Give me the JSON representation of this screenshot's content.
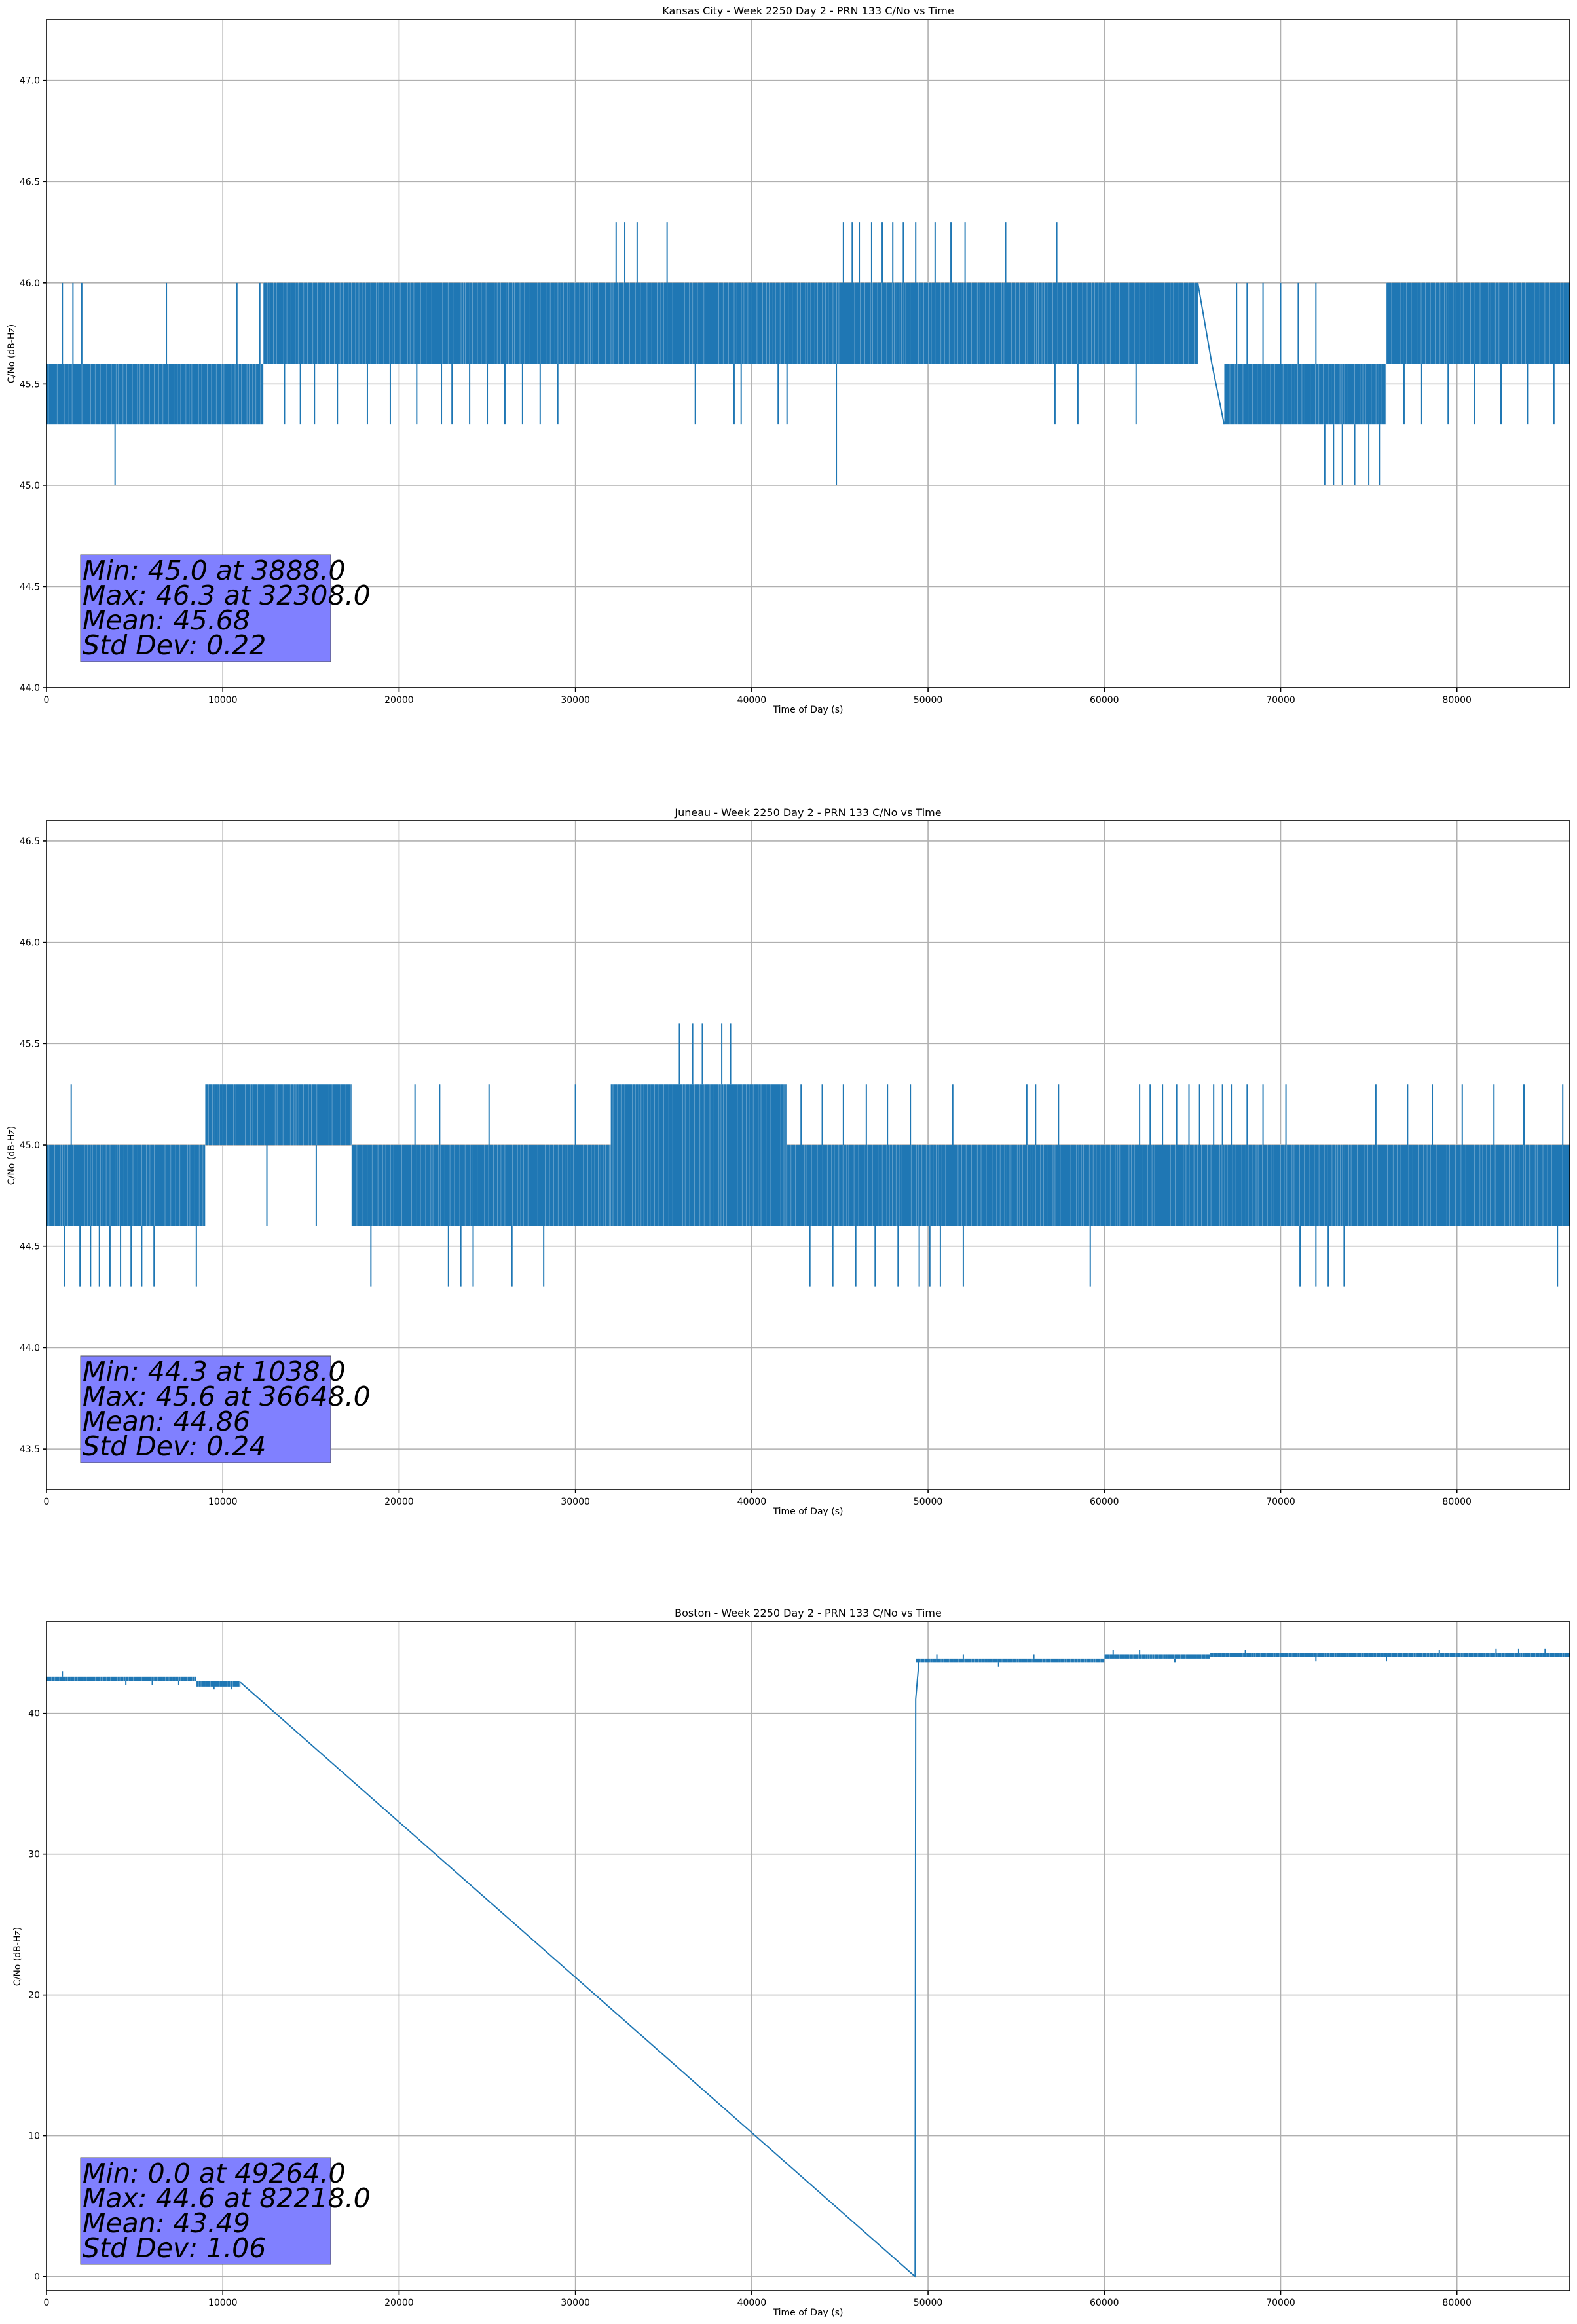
{
  "colors": {
    "series": "#1f77b4",
    "stats_box": "#8080ff",
    "grid": "#b0b0b0"
  },
  "chart_data": [
    {
      "type": "line",
      "title": "Kansas City - Week 2250 Day 2 - PRN 133 C/No vs Time",
      "xlabel": "Time of Day (s)",
      "ylabel": "C/No (dB-Hz)",
      "xlim": [
        0,
        86400
      ],
      "ylim": [
        44.0,
        47.3
      ],
      "xticks": [
        0,
        10000,
        20000,
        30000,
        40000,
        50000,
        60000,
        70000,
        80000
      ],
      "yticks": [
        44.0,
        44.5,
        45.0,
        45.5,
        46.0,
        46.5,
        47.0
      ],
      "ytick_format": 1,
      "grid": true,
      "stats_box": {
        "placement": "bottom-left",
        "lines": [
          "Min: 45.0 at 3888.0",
          "Max: 46.3 at 32308.0",
          "Mean: 45.68",
          "Std Dev: 0.22"
        ]
      },
      "bands": [
        {
          "from": 0,
          "to": 12300,
          "low": 45.3,
          "high": 45.6
        },
        {
          "from": 12300,
          "to": 65300,
          "low": 45.6,
          "high": 46.0
        },
        {
          "from": 66800,
          "to": 76000,
          "low": 45.3,
          "high": 45.6
        },
        {
          "from": 76000,
          "to": 86400,
          "low": 45.6,
          "high": 46.0
        }
      ],
      "segments": [
        {
          "x": [
            65300,
            66100,
            66800
          ],
          "y": [
            46.0,
            45.6,
            45.3
          ]
        }
      ],
      "spikes": [
        {
          "x": 900,
          "base": 45.6,
          "to": 46.0
        },
        {
          "x": 1500,
          "base": 45.6,
          "to": 46.0
        },
        {
          "x": 2000,
          "base": 45.6,
          "to": 46.0
        },
        {
          "x": 3888,
          "base": 45.3,
          "to": 45.0
        },
        {
          "x": 6800,
          "base": 45.6,
          "to": 46.0
        },
        {
          "x": 10800,
          "base": 45.6,
          "to": 46.0
        },
        {
          "x": 12100,
          "base": 45.6,
          "to": 46.0
        },
        {
          "x": 13500,
          "base": 45.6,
          "to": 45.3
        },
        {
          "x": 14400,
          "base": 45.6,
          "to": 45.3
        },
        {
          "x": 15200,
          "base": 45.6,
          "to": 45.3
        },
        {
          "x": 16500,
          "base": 45.6,
          "to": 45.3
        },
        {
          "x": 18200,
          "base": 45.6,
          "to": 45.3
        },
        {
          "x": 19500,
          "base": 45.6,
          "to": 45.3
        },
        {
          "x": 21000,
          "base": 45.6,
          "to": 45.3
        },
        {
          "x": 22400,
          "base": 45.6,
          "to": 45.3
        },
        {
          "x": 23000,
          "base": 45.6,
          "to": 45.3
        },
        {
          "x": 24000,
          "base": 45.6,
          "to": 45.3
        },
        {
          "x": 25000,
          "base": 45.6,
          "to": 45.3
        },
        {
          "x": 26000,
          "base": 45.6,
          "to": 45.3
        },
        {
          "x": 27000,
          "base": 45.6,
          "to": 45.3
        },
        {
          "x": 28000,
          "base": 45.6,
          "to": 45.3
        },
        {
          "x": 29000,
          "base": 45.6,
          "to": 45.3
        },
        {
          "x": 32308,
          "base": 46.0,
          "to": 46.3
        },
        {
          "x": 32800,
          "base": 46.0,
          "to": 46.3
        },
        {
          "x": 33500,
          "base": 46.0,
          "to": 46.3
        },
        {
          "x": 35200,
          "base": 46.0,
          "to": 46.3
        },
        {
          "x": 36800,
          "base": 45.6,
          "to": 45.3
        },
        {
          "x": 39000,
          "base": 45.6,
          "to": 45.3
        },
        {
          "x": 39400,
          "base": 45.6,
          "to": 45.3
        },
        {
          "x": 41500,
          "base": 45.6,
          "to": 45.3
        },
        {
          "x": 42000,
          "base": 45.6,
          "to": 45.3
        },
        {
          "x": 44800,
          "base": 45.6,
          "to": 45.0
        },
        {
          "x": 45200,
          "base": 46.0,
          "to": 46.3
        },
        {
          "x": 45700,
          "base": 46.0,
          "to": 46.3
        },
        {
          "x": 46100,
          "base": 46.0,
          "to": 46.3
        },
        {
          "x": 46800,
          "base": 46.0,
          "to": 46.3
        },
        {
          "x": 47400,
          "base": 46.0,
          "to": 46.3
        },
        {
          "x": 48000,
          "base": 46.0,
          "to": 46.3
        },
        {
          "x": 48600,
          "base": 46.0,
          "to": 46.3
        },
        {
          "x": 49300,
          "base": 46.0,
          "to": 46.3
        },
        {
          "x": 50400,
          "base": 46.0,
          "to": 46.3
        },
        {
          "x": 51300,
          "base": 46.0,
          "to": 46.3
        },
        {
          "x": 52100,
          "base": 46.0,
          "to": 46.3
        },
        {
          "x": 54400,
          "base": 46.0,
          "to": 46.3
        },
        {
          "x": 57300,
          "base": 46.0,
          "to": 46.3
        },
        {
          "x": 57200,
          "base": 45.6,
          "to": 45.3
        },
        {
          "x": 58500,
          "base": 45.6,
          "to": 45.3
        },
        {
          "x": 61800,
          "base": 45.6,
          "to": 45.3
        },
        {
          "x": 67500,
          "base": 45.6,
          "to": 46.0
        },
        {
          "x": 68100,
          "base": 45.6,
          "to": 46.0
        },
        {
          "x": 69000,
          "base": 45.6,
          "to": 46.0
        },
        {
          "x": 70000,
          "base": 45.6,
          "to": 46.0
        },
        {
          "x": 71000,
          "base": 45.6,
          "to": 46.0
        },
        {
          "x": 72000,
          "base": 45.6,
          "to": 46.0
        },
        {
          "x": 72500,
          "base": 45.3,
          "to": 45.0
        },
        {
          "x": 73000,
          "base": 45.3,
          "to": 45.0
        },
        {
          "x": 73500,
          "base": 45.3,
          "to": 45.0
        },
        {
          "x": 74200,
          "base": 45.3,
          "to": 45.0
        },
        {
          "x": 75000,
          "base": 45.3,
          "to": 45.0
        },
        {
          "x": 75600,
          "base": 45.3,
          "to": 45.0
        },
        {
          "x": 77000,
          "base": 45.6,
          "to": 45.3
        },
        {
          "x": 78000,
          "base": 45.6,
          "to": 45.3
        },
        {
          "x": 79500,
          "base": 45.6,
          "to": 45.3
        },
        {
          "x": 81000,
          "base": 45.6,
          "to": 45.3
        },
        {
          "x": 82500,
          "base": 45.6,
          "to": 45.3
        },
        {
          "x": 84000,
          "base": 45.6,
          "to": 45.3
        },
        {
          "x": 85500,
          "base": 45.6,
          "to": 45.3
        }
      ]
    },
    {
      "type": "line",
      "title": "Juneau - Week 2250 Day 2 - PRN 133 C/No vs Time",
      "xlabel": "Time of Day (s)",
      "ylabel": "C/No (dB-Hz)",
      "xlim": [
        0,
        86400
      ],
      "ylim": [
        43.3,
        46.6
      ],
      "xticks": [
        0,
        10000,
        20000,
        30000,
        40000,
        50000,
        60000,
        70000,
        80000
      ],
      "yticks": [
        43.5,
        44.0,
        44.5,
        45.0,
        45.5,
        46.0,
        46.5
      ],
      "ytick_format": 1,
      "grid": true,
      "stats_box": {
        "placement": "bottom-left",
        "lines": [
          "Min: 44.3 at 1038.0",
          "Max: 45.6 at 36648.0",
          "Mean: 44.86",
          "Std Dev: 0.24"
        ]
      },
      "bands": [
        {
          "from": 0,
          "to": 9000,
          "low": 44.6,
          "high": 45.0
        },
        {
          "from": 9000,
          "to": 17300,
          "low": 45.0,
          "high": 45.3
        },
        {
          "from": 17300,
          "to": 32000,
          "low": 44.6,
          "high": 45.0
        },
        {
          "from": 32000,
          "to": 42000,
          "low": 44.6,
          "high": 45.3
        },
        {
          "from": 42000,
          "to": 86400,
          "low": 44.6,
          "high": 45.0
        }
      ],
      "segments": [],
      "spikes": [
        {
          "x": 1038,
          "base": 44.6,
          "to": 44.3
        },
        {
          "x": 1400,
          "base": 45.0,
          "to": 45.3
        },
        {
          "x": 1900,
          "base": 44.6,
          "to": 44.3
        },
        {
          "x": 2500,
          "base": 44.6,
          "to": 44.3
        },
        {
          "x": 3000,
          "base": 44.6,
          "to": 44.3
        },
        {
          "x": 3600,
          "base": 44.6,
          "to": 44.3
        },
        {
          "x": 4200,
          "base": 44.6,
          "to": 44.3
        },
        {
          "x": 4800,
          "base": 44.6,
          "to": 44.3
        },
        {
          "x": 5400,
          "base": 44.6,
          "to": 44.3
        },
        {
          "x": 6100,
          "base": 44.6,
          "to": 44.3
        },
        {
          "x": 8500,
          "base": 44.6,
          "to": 44.3
        },
        {
          "x": 12500,
          "base": 45.0,
          "to": 44.6
        },
        {
          "x": 15300,
          "base": 45.0,
          "to": 44.6
        },
        {
          "x": 18400,
          "base": 44.6,
          "to": 44.3
        },
        {
          "x": 20900,
          "base": 45.0,
          "to": 45.3
        },
        {
          "x": 22300,
          "base": 45.0,
          "to": 45.3
        },
        {
          "x": 22800,
          "base": 44.6,
          "to": 44.3
        },
        {
          "x": 23500,
          "base": 44.6,
          "to": 44.3
        },
        {
          "x": 24200,
          "base": 44.6,
          "to": 44.3
        },
        {
          "x": 25100,
          "base": 45.0,
          "to": 45.3
        },
        {
          "x": 26400,
          "base": 44.6,
          "to": 44.3
        },
        {
          "x": 28200,
          "base": 44.6,
          "to": 44.3
        },
        {
          "x": 30000,
          "base": 45.0,
          "to": 45.3
        },
        {
          "x": 35900,
          "base": 45.3,
          "to": 45.6
        },
        {
          "x": 36648,
          "base": 45.3,
          "to": 45.6
        },
        {
          "x": 37200,
          "base": 45.3,
          "to": 45.6
        },
        {
          "x": 38300,
          "base": 45.3,
          "to": 45.6
        },
        {
          "x": 38800,
          "base": 45.3,
          "to": 45.6
        },
        {
          "x": 42800,
          "base": 45.0,
          "to": 45.3
        },
        {
          "x": 43300,
          "base": 44.6,
          "to": 44.3
        },
        {
          "x": 44000,
          "base": 45.0,
          "to": 45.3
        },
        {
          "x": 44600,
          "base": 44.6,
          "to": 44.3
        },
        {
          "x": 45200,
          "base": 45.0,
          "to": 45.3
        },
        {
          "x": 45900,
          "base": 44.6,
          "to": 44.3
        },
        {
          "x": 46500,
          "base": 45.0,
          "to": 45.3
        },
        {
          "x": 47000,
          "base": 44.6,
          "to": 44.3
        },
        {
          "x": 47700,
          "base": 45.0,
          "to": 45.3
        },
        {
          "x": 48300,
          "base": 44.6,
          "to": 44.3
        },
        {
          "x": 49000,
          "base": 45.0,
          "to": 45.3
        },
        {
          "x": 49500,
          "base": 44.6,
          "to": 44.3
        },
        {
          "x": 50100,
          "base": 44.6,
          "to": 44.3
        },
        {
          "x": 50700,
          "base": 44.6,
          "to": 44.3
        },
        {
          "x": 51400,
          "base": 45.0,
          "to": 45.3
        },
        {
          "x": 52000,
          "base": 44.6,
          "to": 44.3
        },
        {
          "x": 55600,
          "base": 45.0,
          "to": 45.3
        },
        {
          "x": 56100,
          "base": 45.0,
          "to": 45.3
        },
        {
          "x": 57400,
          "base": 45.0,
          "to": 45.3
        },
        {
          "x": 59200,
          "base": 44.6,
          "to": 44.3
        },
        {
          "x": 62000,
          "base": 45.0,
          "to": 45.3
        },
        {
          "x": 62600,
          "base": 45.0,
          "to": 45.3
        },
        {
          "x": 63300,
          "base": 45.0,
          "to": 45.3
        },
        {
          "x": 64100,
          "base": 45.0,
          "to": 45.3
        },
        {
          "x": 64800,
          "base": 45.0,
          "to": 45.3
        },
        {
          "x": 65400,
          "base": 45.0,
          "to": 45.3
        },
        {
          "x": 66200,
          "base": 45.0,
          "to": 45.3
        },
        {
          "x": 66700,
          "base": 45.0,
          "to": 45.3
        },
        {
          "x": 67200,
          "base": 45.0,
          "to": 45.3
        },
        {
          "x": 68100,
          "base": 45.0,
          "to": 45.3
        },
        {
          "x": 69000,
          "base": 45.0,
          "to": 45.3
        },
        {
          "x": 70300,
          "base": 45.0,
          "to": 45.3
        },
        {
          "x": 71100,
          "base": 44.6,
          "to": 44.3
        },
        {
          "x": 72000,
          "base": 44.6,
          "to": 44.3
        },
        {
          "x": 72700,
          "base": 44.6,
          "to": 44.3
        },
        {
          "x": 73600,
          "base": 44.6,
          "to": 44.3
        },
        {
          "x": 75400,
          "base": 45.0,
          "to": 45.3
        },
        {
          "x": 77200,
          "base": 45.0,
          "to": 45.3
        },
        {
          "x": 78600,
          "base": 45.0,
          "to": 45.3
        },
        {
          "x": 80300,
          "base": 45.0,
          "to": 45.3
        },
        {
          "x": 82100,
          "base": 45.0,
          "to": 45.3
        },
        {
          "x": 83800,
          "base": 45.0,
          "to": 45.3
        },
        {
          "x": 85700,
          "base": 44.6,
          "to": 44.3
        },
        {
          "x": 86000,
          "base": 45.0,
          "to": 45.3
        }
      ]
    },
    {
      "type": "line",
      "title": "Boston - Week 2250 Day 2 - PRN 133 C/No vs Time",
      "xlabel": "Time of Day (s)",
      "ylabel": "C/No (dB-Hz)",
      "xlim": [
        0,
        86400
      ],
      "ylim": [
        -1,
        46.5
      ],
      "xticks": [
        0,
        10000,
        20000,
        30000,
        40000,
        50000,
        60000,
        70000,
        80000
      ],
      "yticks": [
        0,
        10,
        20,
        30,
        40
      ],
      "ytick_format": 0,
      "grid": true,
      "stats_box": {
        "placement": "bottom-left",
        "lines": [
          "Min: 0.0 at 49264.0",
          "Max: 44.6 at 82218.0",
          "Mean: 43.49",
          "Std Dev: 1.06"
        ]
      },
      "bands": [
        {
          "from": 0,
          "to": 8500,
          "low": 42.3,
          "high": 42.6
        },
        {
          "from": 8500,
          "to": 11000,
          "low": 41.9,
          "high": 42.3
        },
        {
          "from": 49300,
          "to": 60000,
          "low": 43.6,
          "high": 43.9
        },
        {
          "from": 60000,
          "to": 66000,
          "low": 43.9,
          "high": 44.2
        },
        {
          "from": 66000,
          "to": 86400,
          "low": 44.0,
          "high": 44.3
        }
      ],
      "segments": [
        {
          "x": [
            11000,
            49264,
            49300,
            49500
          ],
          "y": [
            42.2,
            0.0,
            41.0,
            43.9
          ]
        }
      ],
      "spikes": [
        {
          "x": 900,
          "base": 42.6,
          "to": 43.0
        },
        {
          "x": 4500,
          "base": 42.3,
          "to": 42.0
        },
        {
          "x": 6000,
          "base": 42.3,
          "to": 42.0
        },
        {
          "x": 7500,
          "base": 42.3,
          "to": 42.0
        },
        {
          "x": 9500,
          "base": 42.3,
          "to": 41.7
        },
        {
          "x": 10500,
          "base": 42.3,
          "to": 41.7
        },
        {
          "x": 50500,
          "base": 43.9,
          "to": 44.2
        },
        {
          "x": 52000,
          "base": 43.9,
          "to": 44.2
        },
        {
          "x": 54000,
          "base": 43.6,
          "to": 43.3
        },
        {
          "x": 56000,
          "base": 43.9,
          "to": 44.2
        },
        {
          "x": 60500,
          "base": 44.2,
          "to": 44.5
        },
        {
          "x": 62000,
          "base": 44.2,
          "to": 44.5
        },
        {
          "x": 64000,
          "base": 43.9,
          "to": 43.6
        },
        {
          "x": 68000,
          "base": 44.3,
          "to": 44.5
        },
        {
          "x": 72000,
          "base": 44.0,
          "to": 43.7
        },
        {
          "x": 76000,
          "base": 44.0,
          "to": 43.7
        },
        {
          "x": 79000,
          "base": 44.3,
          "to": 44.5
        },
        {
          "x": 82218,
          "base": 44.3,
          "to": 44.6
        },
        {
          "x": 83500,
          "base": 44.3,
          "to": 44.6
        },
        {
          "x": 85000,
          "base": 44.3,
          "to": 44.6
        }
      ]
    }
  ]
}
